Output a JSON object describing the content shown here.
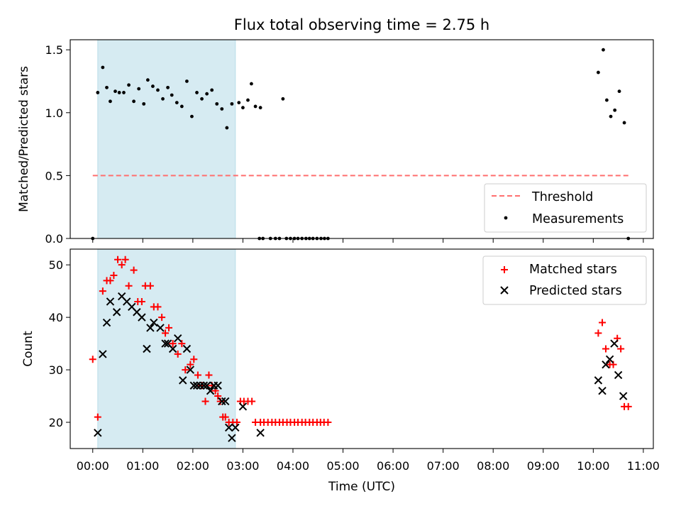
{
  "chart_data": [
    {
      "type": "scatter",
      "panel": "top",
      "title": "Flux total observing time = 2.75 h",
      "ylabel": "Matched/Predicted stars",
      "xlabel": "",
      "ylim": [
        0,
        1.58
      ],
      "yticks": [
        0.0,
        0.5,
        1.0,
        1.5
      ],
      "ytick_labels": [
        "0.0",
        "0.5",
        "1.0",
        "1.5"
      ],
      "xlim_hours": [
        -0.45,
        11.2
      ],
      "shaded_span_hours": [
        0.1,
        2.85
      ],
      "threshold": {
        "name": "Threshold",
        "value": 0.5,
        "x_range_hours": [
          0.0,
          10.7
        ],
        "color": "#ff6f6f"
      },
      "measurements": {
        "name": "Measurements",
        "color": "#000000",
        "x": [
          0.0,
          0.1,
          0.2,
          0.28,
          0.35,
          0.45,
          0.53,
          0.62,
          0.72,
          0.82,
          0.92,
          1.02,
          1.1,
          1.2,
          1.3,
          1.4,
          1.5,
          1.58,
          1.68,
          1.78,
          1.88,
          1.98,
          2.08,
          2.18,
          2.28,
          2.38,
          2.48,
          2.58,
          2.68,
          2.78,
          2.92,
          3.0,
          3.1,
          3.17,
          3.25,
          3.33,
          3.35,
          3.4,
          3.55,
          3.65,
          3.73,
          3.8,
          3.87,
          3.95,
          4.03,
          4.1,
          4.18,
          4.26,
          4.33,
          4.4,
          4.48,
          4.56,
          4.63,
          4.7,
          10.1,
          10.2,
          10.27,
          10.35,
          10.43,
          10.52,
          10.62,
          10.7
        ],
        "y": [
          0.0,
          1.16,
          1.36,
          1.2,
          1.09,
          1.17,
          1.16,
          1.16,
          1.22,
          1.09,
          1.19,
          1.07,
          1.26,
          1.21,
          1.18,
          1.11,
          1.2,
          1.14,
          1.08,
          1.05,
          1.25,
          0.97,
          1.16,
          1.11,
          1.15,
          1.18,
          1.07,
          1.03,
          0.88,
          1.07,
          1.08,
          1.04,
          1.1,
          1.23,
          1.05,
          0.0,
          1.04,
          0.0,
          0.0,
          0.0,
          0.0,
          1.11,
          0.0,
          0.0,
          0.0,
          0.0,
          0.0,
          0.0,
          0.0,
          0.0,
          0.0,
          0.0,
          0.0,
          0.0,
          1.32,
          1.5,
          1.1,
          0.97,
          1.02,
          1.17,
          0.92,
          0.0
        ]
      },
      "legend": [
        "Threshold",
        "Measurements"
      ],
      "legend_position": "lower-right"
    },
    {
      "type": "scatter",
      "panel": "bottom",
      "title": "",
      "ylabel": "Count",
      "xlabel": "Time (UTC)",
      "ylim": [
        15,
        53
      ],
      "yticks": [
        20,
        30,
        40,
        50
      ],
      "ytick_labels": [
        "20",
        "30",
        "40",
        "50"
      ],
      "xlim_hours": [
        -0.45,
        11.2
      ],
      "xticks_hours": [
        0,
        1,
        2,
        3,
        4,
        5,
        6,
        7,
        8,
        9,
        10,
        11
      ],
      "xtick_labels": [
        "00:00",
        "01:00",
        "02:00",
        "03:00",
        "04:00",
        "05:00",
        "06:00",
        "07:00",
        "08:00",
        "09:00",
        "10:00",
        "11:00"
      ],
      "shaded_span_hours": [
        0.1,
        2.85
      ],
      "series": [
        {
          "name": "Matched stars",
          "marker": "+",
          "color": "#ff0000",
          "x": [
            0.0,
            0.1,
            0.2,
            0.28,
            0.35,
            0.42,
            0.5,
            0.58,
            0.65,
            0.72,
            0.82,
            0.9,
            0.98,
            1.05,
            1.15,
            1.22,
            1.3,
            1.38,
            1.45,
            1.52,
            1.6,
            1.7,
            1.78,
            1.85,
            1.95,
            2.02,
            2.1,
            2.18,
            2.25,
            2.32,
            2.38,
            2.45,
            2.5,
            2.55,
            2.6,
            2.65,
            2.72,
            2.8,
            2.88,
            2.95,
            3.02,
            3.1,
            3.18,
            3.25,
            3.35,
            3.42,
            3.5,
            3.58,
            3.65,
            3.73,
            3.8,
            3.88,
            3.95,
            4.03,
            4.1,
            4.18,
            4.25,
            4.33,
            4.4,
            4.48,
            4.55,
            4.62,
            4.7,
            10.1,
            10.18,
            10.25,
            10.33,
            10.4,
            10.48,
            10.55,
            10.62,
            10.7
          ],
          "y": [
            32,
            21,
            45,
            47,
            47,
            48,
            51,
            50,
            51,
            46,
            49,
            43,
            43,
            46,
            46,
            42,
            42,
            40,
            37,
            38,
            35,
            33,
            35,
            30,
            31,
            32,
            29,
            27,
            24,
            29,
            27,
            26,
            25,
            24,
            21,
            21,
            20,
            20,
            20,
            24,
            24,
            24,
            24,
            20,
            20,
            20,
            20,
            20,
            20,
            20,
            20,
            20,
            20,
            20,
            20,
            20,
            20,
            20,
            20,
            20,
            20,
            20,
            20,
            37,
            39,
            34,
            31,
            31,
            36,
            34,
            23,
            23
          ]
        },
        {
          "name": "Predicted stars",
          "marker": "x",
          "color": "#000000",
          "x": [
            0.1,
            0.2,
            0.28,
            0.35,
            0.48,
            0.58,
            0.68,
            0.78,
            0.88,
            0.98,
            1.08,
            1.15,
            1.22,
            1.35,
            1.45,
            1.5,
            1.6,
            1.7,
            1.8,
            1.88,
            1.95,
            2.02,
            2.08,
            2.15,
            2.22,
            2.28,
            2.35,
            2.42,
            2.5,
            2.58,
            2.65,
            2.72,
            2.78,
            2.85,
            3.0,
            3.35,
            10.1,
            10.18,
            10.25,
            10.33,
            10.42,
            10.5,
            10.6
          ],
          "y": [
            18,
            33,
            39,
            43,
            41,
            44,
            43,
            42,
            41,
            40,
            34,
            38,
            39,
            38,
            35,
            35,
            34,
            36,
            28,
            34,
            30,
            27,
            27,
            27,
            27,
            27,
            26,
            27,
            27,
            24,
            24,
            19,
            17,
            19,
            23,
            18,
            28,
            26,
            31,
            32,
            35,
            29,
            25
          ]
        }
      ],
      "legend": [
        "Matched stars",
        "Predicted stars"
      ],
      "legend_position": "upper-right"
    }
  ]
}
